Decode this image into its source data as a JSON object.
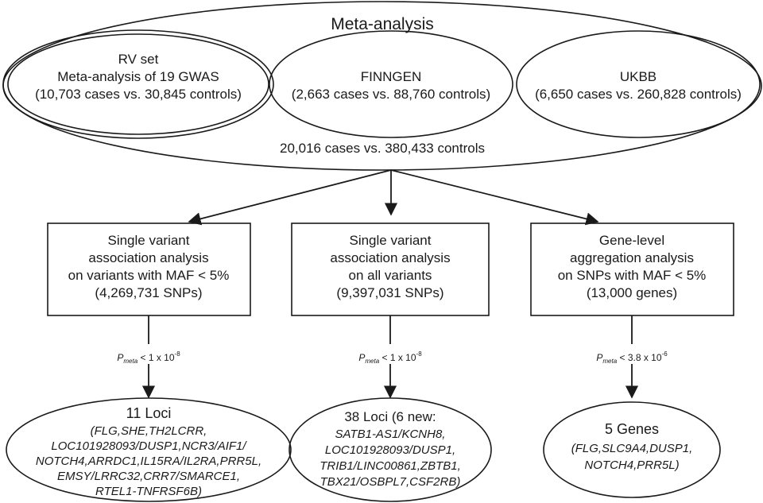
{
  "meta": {
    "title": "Meta-analysis",
    "total": "20,016 cases vs. 380,433 controls"
  },
  "cohorts": [
    {
      "name": "RV set",
      "subtitle": "Meta-analysis of 19 GWAS",
      "counts": "(10,703 cases vs. 30,845 controls)"
    },
    {
      "name": "FINNGEN",
      "counts": "(2,663 cases vs. 88,760 controls)"
    },
    {
      "name": "UKBB",
      "counts": "(6,650 cases vs. 260,828 controls)"
    }
  ],
  "analyses": [
    {
      "lines": [
        "Single variant",
        "association analysis",
        "on variants with MAF < 5%",
        "(4,269,731 SNPs)"
      ],
      "threshold": {
        "p": "P",
        "sub": "meta",
        "text": " < 1 x 10",
        "exp": "-8"
      },
      "result": {
        "title": "11 Loci",
        "lines": [
          "(FLG,SHE,TH2LCRR,",
          "LOC101928093/DUSP1,NCR3/AIF1/",
          "NOTCH4,ARRDC1,IL15RA/IL2RA,PRR5L,",
          "EMSY/LRRC32,CRR7/SMARCE1,",
          "RTEL1-TNFRSF6B)"
        ]
      }
    },
    {
      "lines": [
        "Single variant",
        "association analysis",
        "on all variants",
        "(9,397,031 SNPs)"
      ],
      "threshold": {
        "p": "P",
        "sub": "meta",
        "text": " < 1 x 10",
        "exp": "-8"
      },
      "result": {
        "title": "38 Loci (6 new:",
        "lines": [
          "SATB1-AS1/KCNH8,",
          "LOC101928093/DUSP1,",
          "TRIB1/LINC00861,ZBTB1,",
          "TBX21/OSBPL7,CSF2RB)"
        ]
      }
    },
    {
      "lines": [
        "Gene-level",
        "aggregation analysis",
        "on SNPs with MAF < 5%",
        "(13,000 genes)"
      ],
      "threshold": {
        "p": "P",
        "sub": "meta",
        "text": " < 3.8 x 10",
        "exp": "-6"
      },
      "result": {
        "title": "5 Genes",
        "lines": [
          "(FLG,SLC9A4,DUSP1,",
          "NOTCH4,PRR5L)"
        ]
      }
    }
  ]
}
